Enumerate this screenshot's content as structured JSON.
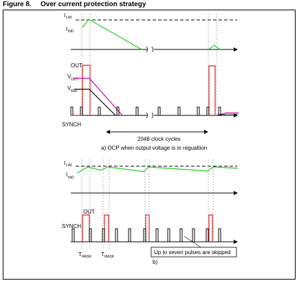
{
  "figure": {
    "number": "Figure 8.",
    "title": "Over current protection strategy"
  },
  "diagram_a": {
    "label_ilim": "I",
    "label_ilim_sub": "LIM",
    "label_iind": "I",
    "label_iind_sub": "IND",
    "label_out": "OUT",
    "label_vout": "V",
    "label_vout_sub": "OUT",
    "label_vref": "V",
    "label_vref_sub": "REF",
    "label_synch": "SYNCH",
    "clock_cycles": "2048 clock cycles",
    "caption": "a) OCP when output voltage is in regualtion"
  },
  "diagram_b": {
    "label_ilim": "I",
    "label_ilim_sub": "LIM",
    "label_iind": "I",
    "label_iind_sub": "IND",
    "label_out": "OUT",
    "label_synch": "SYNCH",
    "label_tmask1": "T",
    "label_tmask1_sub": "MASK",
    "label_tmask2": "T",
    "label_tmask2_sub": "MASK",
    "note": "Up to seven pulses are skipped",
    "caption": "b)"
  },
  "colors": {
    "inductor_current": "#22cc22",
    "out_pulse": "#dd2222",
    "vout": "#cc00aa",
    "vref": "#000000",
    "guides": "#888888"
  }
}
